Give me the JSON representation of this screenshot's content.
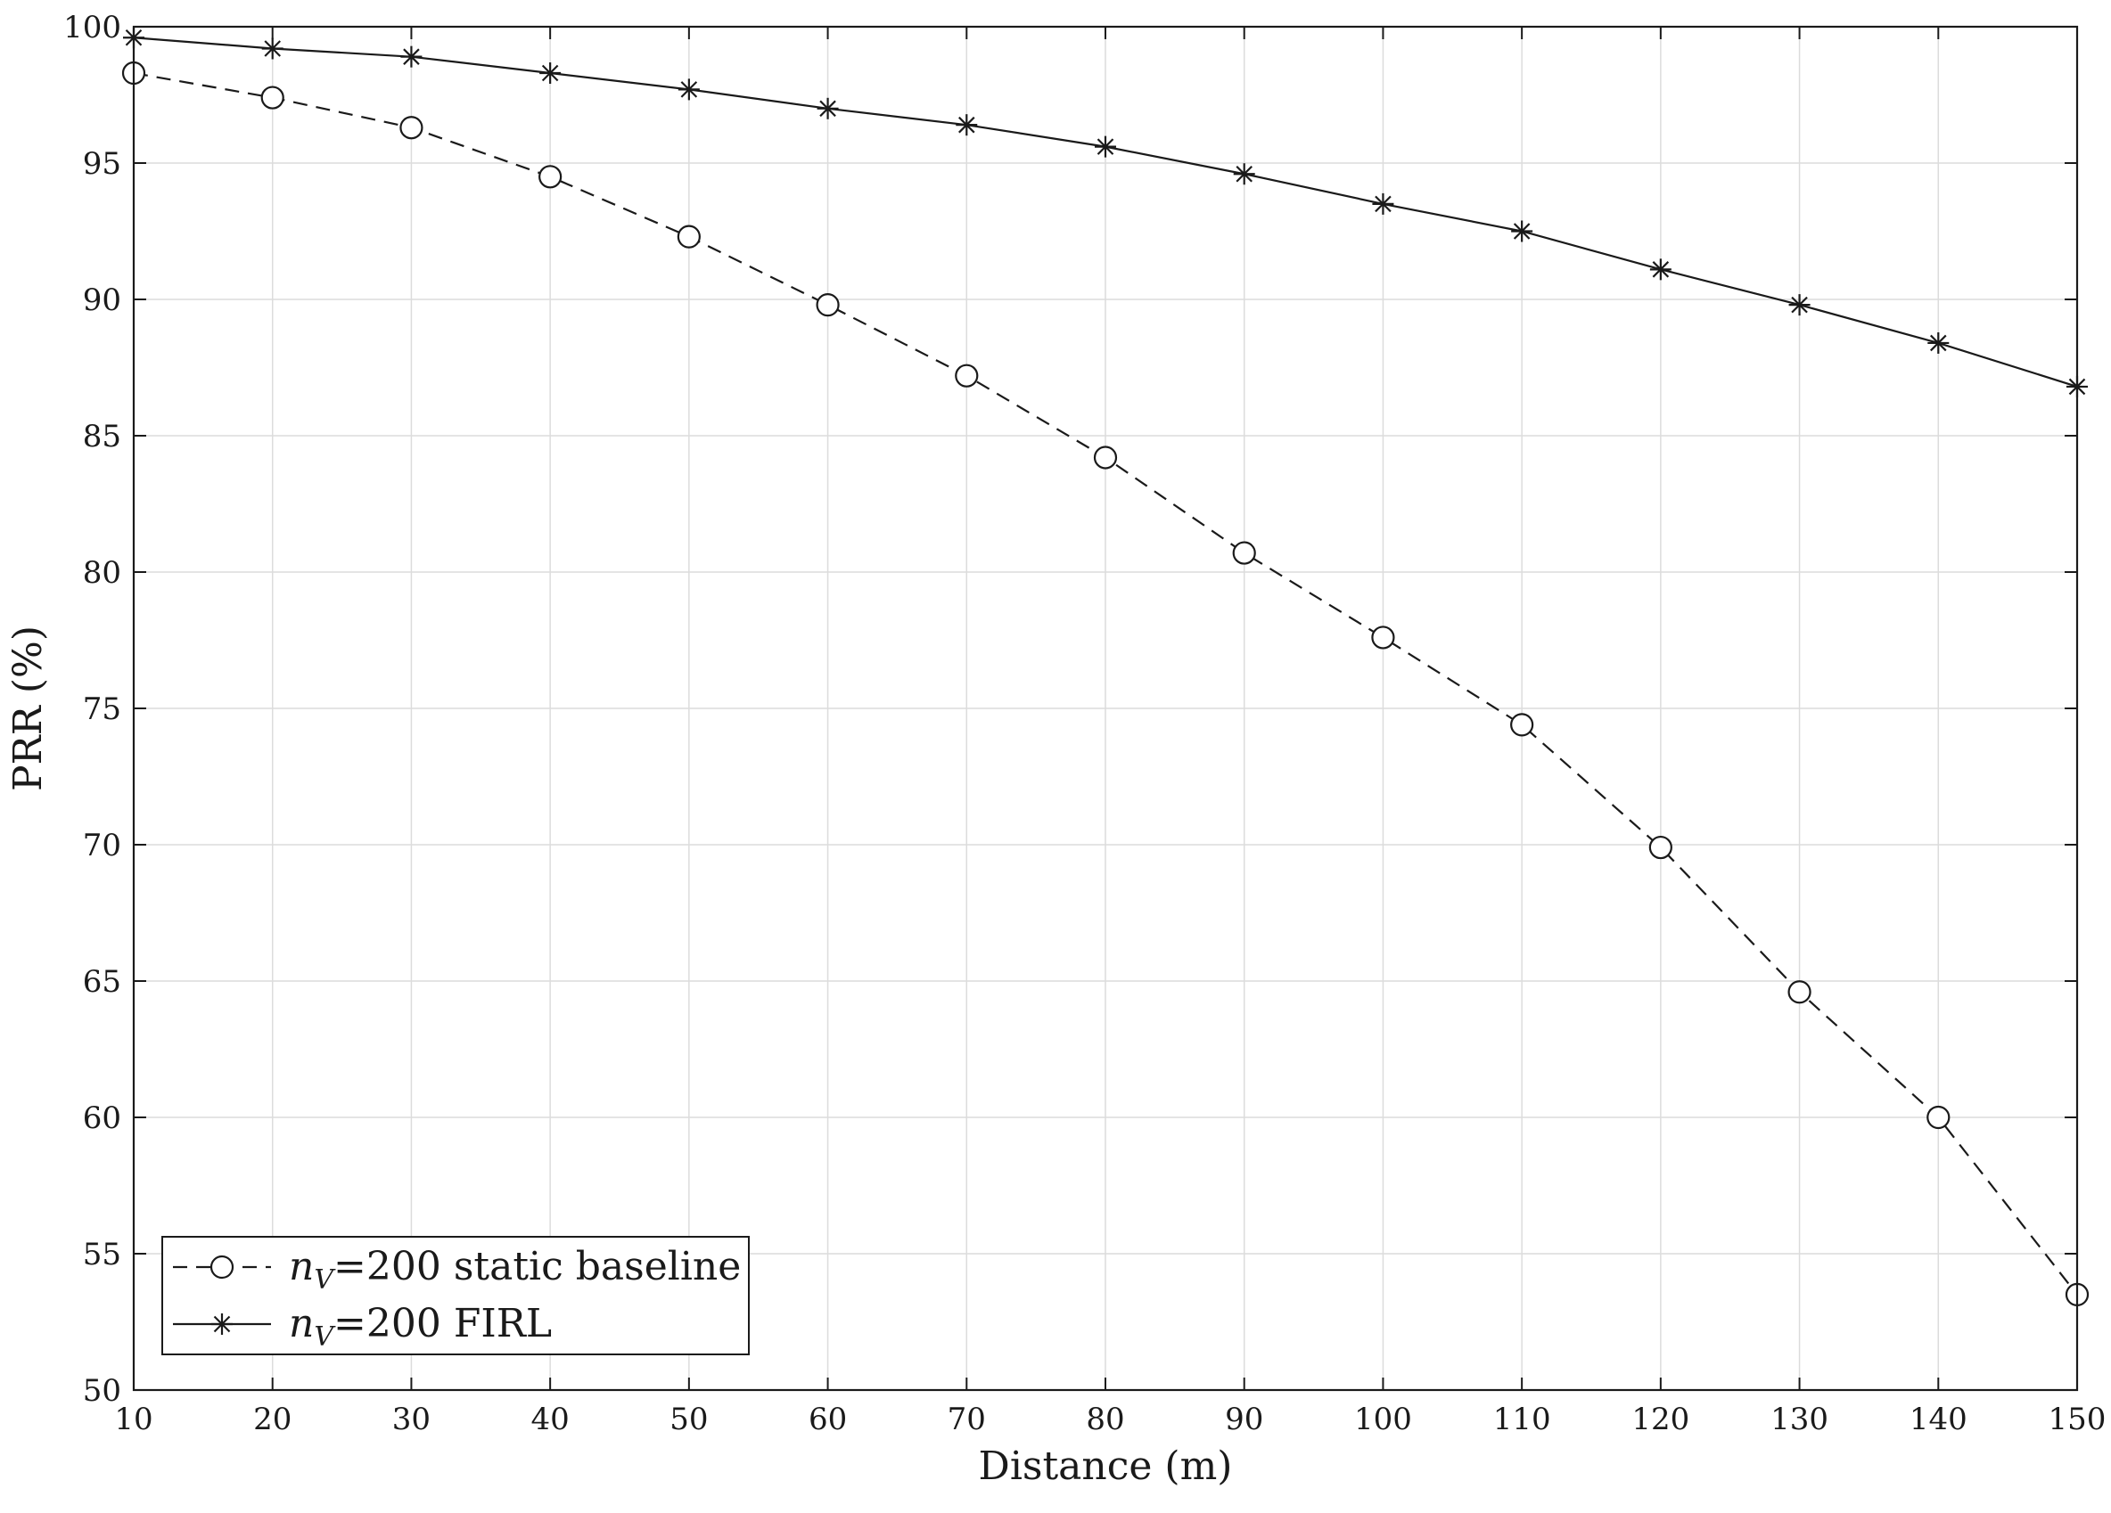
{
  "chart_data": {
    "type": "line",
    "title": "",
    "xlabel": "Distance (m)",
    "ylabel": "PRR (%)",
    "xlim": [
      10,
      150
    ],
    "ylim": [
      50,
      100
    ],
    "x_ticks": [
      10,
      20,
      30,
      40,
      50,
      60,
      70,
      80,
      90,
      100,
      110,
      120,
      130,
      140,
      150
    ],
    "y_ticks": [
      50,
      55,
      60,
      65,
      70,
      75,
      80,
      85,
      90,
      95,
      100
    ],
    "grid": true,
    "legend_position": "bottom-left",
    "x": [
      10,
      20,
      30,
      40,
      50,
      60,
      70,
      80,
      90,
      100,
      110,
      120,
      130,
      140,
      150
    ],
    "series": [
      {
        "name_italic": "n",
        "name_sub": "V",
        "name_rest": "=200 static baseline",
        "line_style": "dashed",
        "marker": "circle",
        "color": "#1a1a1a",
        "values": [
          98.3,
          97.4,
          96.3,
          94.5,
          92.3,
          89.8,
          87.2,
          84.2,
          80.7,
          77.6,
          74.4,
          69.9,
          64.6,
          60.0,
          53.5
        ]
      },
      {
        "name_italic": "n",
        "name_sub": "V",
        "name_rest": "=200 FIRL",
        "line_style": "solid",
        "marker": "asterisk",
        "color": "#1a1a1a",
        "values": [
          99.6,
          99.2,
          98.9,
          98.3,
          97.7,
          97.0,
          96.4,
          95.6,
          94.6,
          93.5,
          92.5,
          91.1,
          89.8,
          88.4,
          86.8
        ]
      }
    ]
  }
}
